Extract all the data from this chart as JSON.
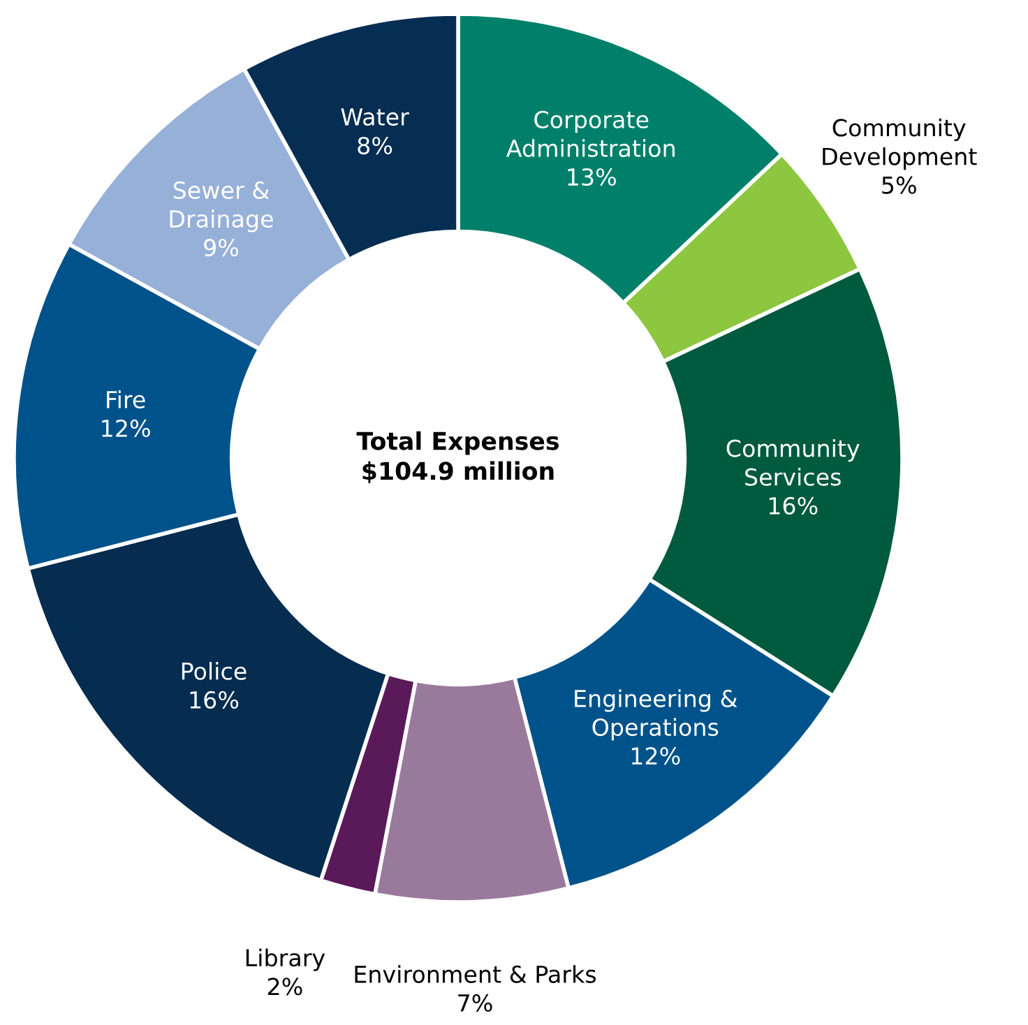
{
  "chart_data": {
    "type": "donut",
    "title": "Total Expenses\n$104.9 million",
    "categories": [
      "Corporate Administration",
      "Community Development",
      "Community Services",
      "Engineering & Operations",
      "Environment & Parks",
      "Library",
      "Police",
      "Fire",
      "Sewer & Drainage",
      "Water"
    ],
    "values": [
      13,
      5,
      16,
      12,
      7,
      2,
      16,
      12,
      9,
      8
    ],
    "colors": [
      "#00806a",
      "#8dc63f",
      "#005a3e",
      "#00538a",
      "#9a7a9c",
      "#5a1a5a",
      "#062c50",
      "#00528a",
      "#96b0d8",
      "#062d52"
    ],
    "value_labels": [
      "13%",
      "5%",
      "16%",
      "12%",
      "7%",
      "2%",
      "16%",
      "12%",
      "9%",
      "8%"
    ],
    "legend": false
  }
}
